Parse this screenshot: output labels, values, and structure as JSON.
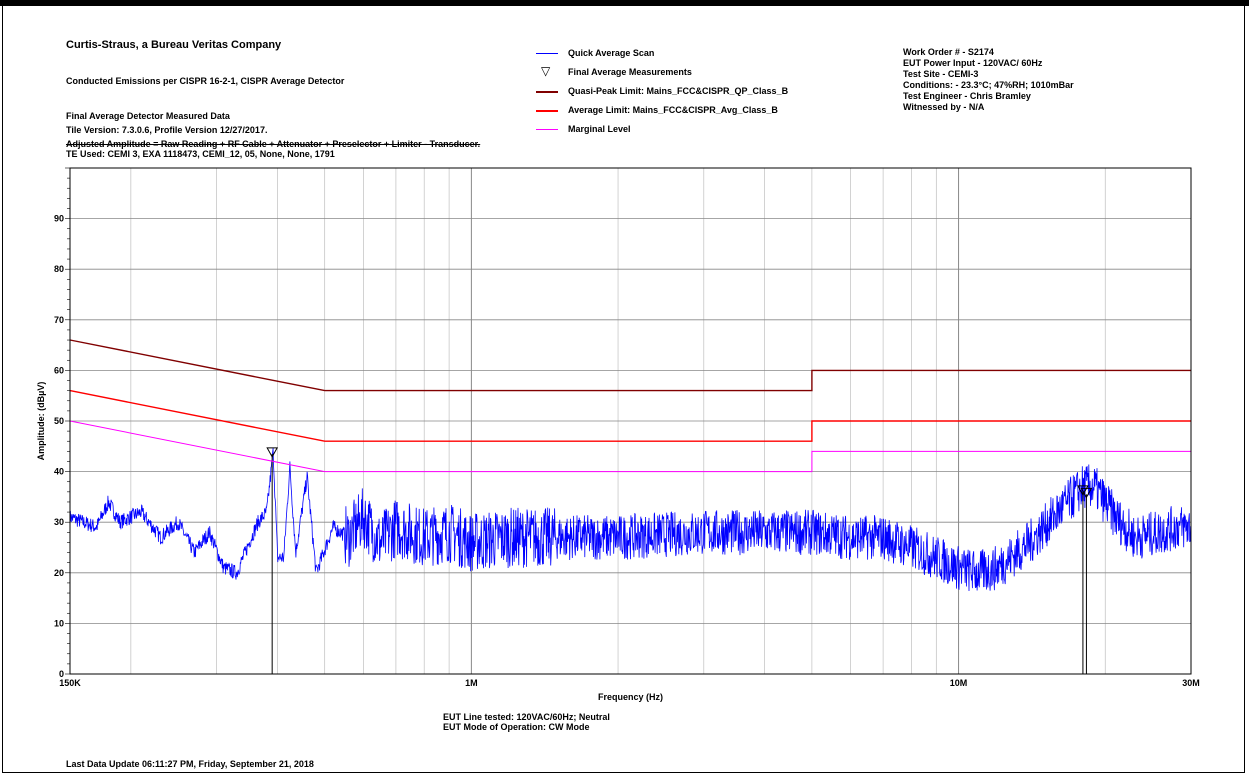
{
  "header": {
    "company": "Curtis-Straus, a Bureau Veritas Company",
    "test_title": "Conducted Emissions per CISPR 16-2-1, CISPR Average Detector",
    "data_title": "Final Average Detector Measured Data",
    "tile_version": "Tile Version: 7.3.0.6, Profile Version 12/27/2017.",
    "adjusted_formula": "Adjusted Amplitude = Raw Reading + RF Cable + Attenuator + Preselector + Limiter  - Transducer.",
    "te_used": "TE Used: CEMI 3, EXA 1118473, CEMI_12, 05, None, None, 1791"
  },
  "work_info": {
    "work_order": "Work Order # - S2174",
    "power_input": "EUT Power Input - 120VAC/ 60Hz",
    "test_site": "Test Site - CEMI-3",
    "conditions": "Conditions: - 23.3°C; 47%RH; 1010mBar",
    "engineer": "Test Engineer - Chris Bramley",
    "witness": "Witnessed by - N/A"
  },
  "footer": {
    "line_tested": "EUT Line tested: 120VAC/60Hz; Neutral",
    "mode": "EUT Mode of Operation: CW Mode",
    "last_update": "Last Data Update 06:11:27 PM, Friday, September 21, 2018"
  },
  "colors": {
    "scan": "#0000ff",
    "qp_limit": "#800000",
    "avg_limit": "#ff0000",
    "marginal": "#ff00ff",
    "grid": "#b4b4b4"
  },
  "chart_data": {
    "type": "line",
    "xlabel": "Frequency (Hz)",
    "ylabel": "Amplitude: (dBµV)",
    "x_scale": "log",
    "xlim": [
      150000,
      30000000
    ],
    "ylim": [
      0,
      100
    ],
    "grid": true,
    "legend_position": "top-center",
    "x_ticks": [
      {
        "value": 150000,
        "label": "150K"
      },
      {
        "value": 1000000,
        "label": "1M"
      },
      {
        "value": 10000000,
        "label": "10M"
      },
      {
        "value": 30000000,
        "label": "30M"
      }
    ],
    "y_ticks": [
      0,
      10,
      20,
      30,
      40,
      50,
      60,
      70,
      80,
      90
    ],
    "series": [
      {
        "name": "Quick Average Scan",
        "kind": "scan",
        "points": [
          [
            150000,
            31
          ],
          [
            170000,
            29
          ],
          [
            180000,
            34
          ],
          [
            190000,
            30
          ],
          [
            210000,
            32
          ],
          [
            230000,
            27
          ],
          [
            250000,
            30
          ],
          [
            270000,
            24
          ],
          [
            290000,
            28
          ],
          [
            310000,
            21
          ],
          [
            330000,
            20
          ],
          [
            350000,
            26
          ],
          [
            365000,
            30
          ],
          [
            380000,
            32
          ],
          [
            392000,
            44
          ],
          [
            400000,
            23
          ],
          [
            412000,
            23
          ],
          [
            424000,
            41
          ],
          [
            436000,
            24
          ],
          [
            460000,
            39
          ],
          [
            480000,
            20
          ],
          [
            520000,
            29
          ],
          [
            560000,
            27
          ],
          [
            600000,
            31
          ],
          [
            650000,
            26
          ],
          [
            700000,
            29
          ],
          [
            800000,
            27
          ],
          [
            900000,
            28
          ],
          [
            1000000,
            26
          ],
          [
            1200000,
            27
          ],
          [
            1500000,
            27
          ],
          [
            2000000,
            27
          ],
          [
            3000000,
            28
          ],
          [
            4000000,
            28
          ],
          [
            5000000,
            28
          ],
          [
            6000000,
            27
          ],
          [
            7000000,
            27
          ],
          [
            8000000,
            25
          ],
          [
            9000000,
            23
          ],
          [
            10000000,
            21
          ],
          [
            11000000,
            20
          ],
          [
            12000000,
            21
          ],
          [
            14000000,
            26
          ],
          [
            16000000,
            32
          ],
          [
            18000000,
            37
          ],
          [
            19000000,
            37
          ],
          [
            21000000,
            31
          ],
          [
            23000000,
            27
          ],
          [
            26000000,
            28
          ],
          [
            28000000,
            29
          ],
          [
            30000000,
            29
          ]
        ]
      },
      {
        "name": "Final Average Measurements",
        "kind": "markers",
        "points": [
          [
            390000,
            43.5
          ],
          [
            18000000,
            36
          ],
          [
            18300000,
            35.5
          ]
        ]
      },
      {
        "name": "Quasi-Peak Limit: Mains_FCC&CISPR_QP_Class_B",
        "kind": "limit",
        "color_key": "qp_limit",
        "points": [
          [
            150000,
            66
          ],
          [
            500000,
            56
          ],
          [
            5000000,
            56
          ],
          [
            5000000,
            60
          ],
          [
            30000000,
            60
          ]
        ]
      },
      {
        "name": "Average Limit: Mains_FCC&CISPR_Avg_Class_B",
        "kind": "limit",
        "color_key": "avg_limit",
        "points": [
          [
            150000,
            56
          ],
          [
            500000,
            46
          ],
          [
            5000000,
            46
          ],
          [
            5000000,
            50
          ],
          [
            30000000,
            50
          ]
        ]
      },
      {
        "name": "Marginal Level",
        "kind": "limit",
        "color_key": "marginal",
        "points": [
          [
            150000,
            50
          ],
          [
            500000,
            40
          ],
          [
            5000000,
            40
          ],
          [
            5000000,
            44
          ],
          [
            30000000,
            44
          ]
        ]
      }
    ]
  }
}
